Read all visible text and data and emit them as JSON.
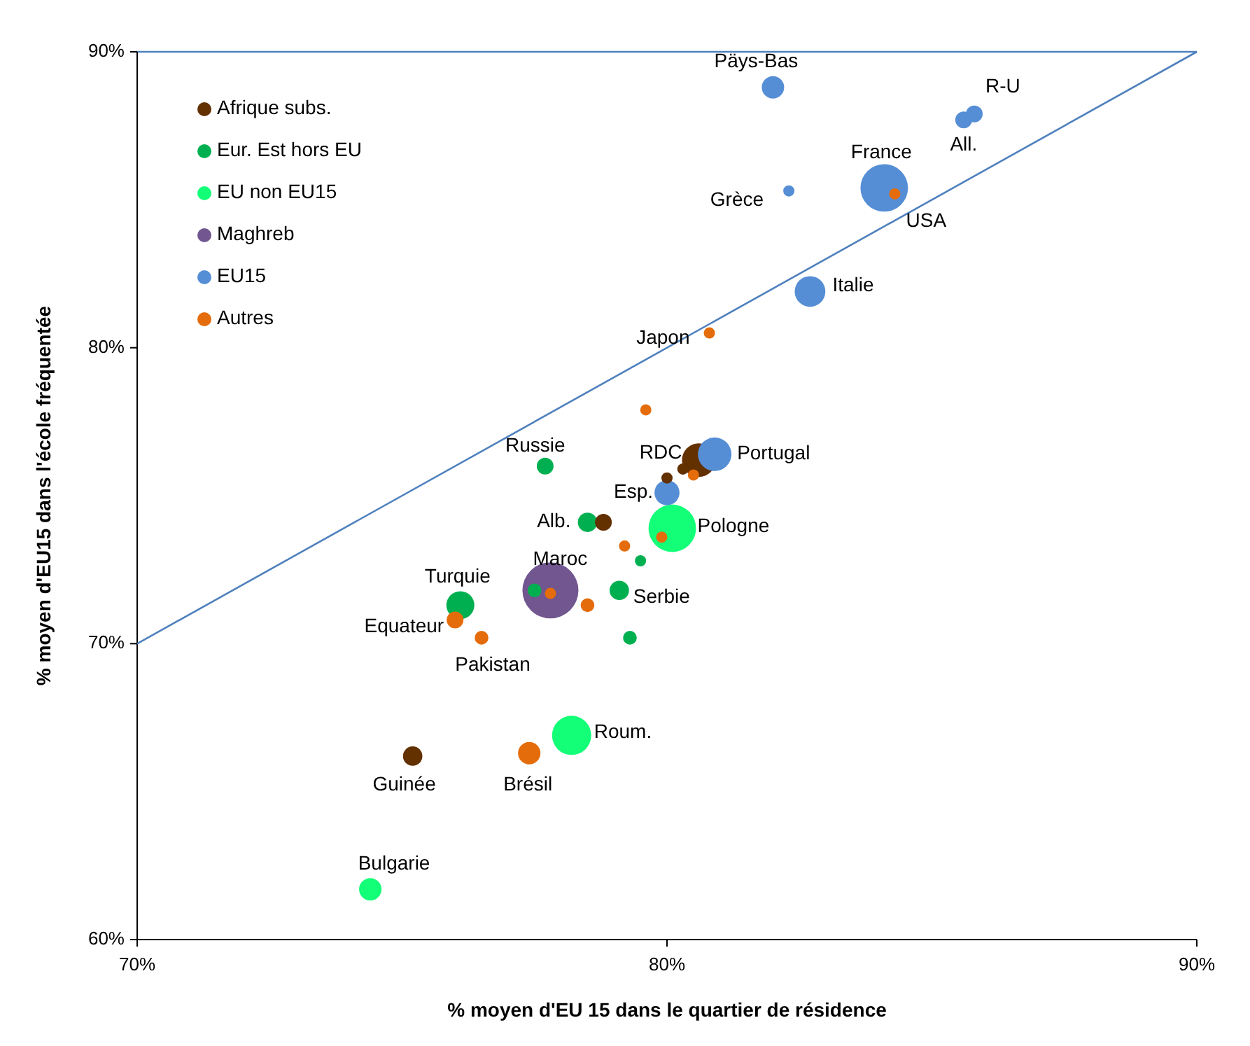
{
  "chart_data": {
    "type": "bubble",
    "xlabel": "% moyen d'EU 15 dans le quartier de résidence",
    "ylabel": "% moyen d'EU15 dans l'école fréquentée",
    "xlim": [
      70,
      90
    ],
    "ylim": [
      60,
      90
    ],
    "xticks": [
      {
        "value": 70,
        "label": "70%"
      },
      {
        "value": 80,
        "label": "80%"
      },
      {
        "value": 90,
        "label": "90%"
      }
    ],
    "yticks": [
      {
        "value": 60,
        "label": "60%"
      },
      {
        "value": 70,
        "label": "70%"
      },
      {
        "value": 80,
        "label": "80%"
      },
      {
        "value": 90,
        "label": "90%"
      }
    ],
    "grid": false,
    "legend": "top left",
    "ref_lines": [
      {
        "axis": "y",
        "value": 90,
        "color": "#4f81bd"
      }
    ],
    "series": [
      {
        "name": "Afrique subs.",
        "color": "#633000",
        "x": [
          80.6,
          80.3,
          80.0,
          78.8,
          75.2
        ],
        "values": [
          76.2,
          75.9,
          75.6,
          74.1,
          66.2
        ],
        "sizes": [
          0.36,
          0.04,
          0.04,
          0.09,
          0.12
        ]
      },
      {
        "name": "Eur. Est hors EU",
        "color": "#00b050",
        "x": [
          77.7,
          78.5,
          77.5,
          79.5,
          79.1,
          79.3,
          76.1
        ],
        "values": [
          76.0,
          74.1,
          71.8,
          72.8,
          71.8,
          70.2,
          71.3
        ],
        "sizes": [
          0.09,
          0.12,
          0.06,
          0.04,
          0.12,
          0.06,
          0.25
        ]
      },
      {
        "name": "EU non EU15",
        "color": "#14ff78",
        "x": [
          80.1,
          78.2,
          74.4
        ],
        "values": [
          73.9,
          66.9,
          61.7
        ],
        "sizes": [
          0.72,
          0.49,
          0.16
        ]
      },
      {
        "name": "Maghreb",
        "color": "#71568f",
        "x": [
          77.8
        ],
        "values": [
          71.8
        ],
        "sizes": [
          1
        ]
      },
      {
        "name": "EU15",
        "color": "#558ed5",
        "x": [
          82.0,
          85.8,
          85.6,
          82.3,
          84.1,
          82.7,
          80.9,
          80.0
        ],
        "values": [
          88.8,
          87.9,
          87.7,
          85.3,
          85.4,
          81.9,
          76.4,
          75.1
        ],
        "sizes": [
          0.16,
          0.09,
          0.09,
          0.04,
          0.72,
          0.3,
          0.36,
          0.2
        ]
      },
      {
        "name": "Autres",
        "color": "#e46c0a",
        "x": [
          84.3,
          80.8,
          79.6,
          80.5,
          79.9,
          79.2,
          77.8,
          78.5,
          76.0,
          76.5,
          77.4
        ],
        "values": [
          85.2,
          80.5,
          77.9,
          75.7,
          73.6,
          73.3,
          71.7,
          71.3,
          70.8,
          70.2,
          66.3
        ],
        "sizes": [
          0.04,
          0.04,
          0.04,
          0.04,
          0.04,
          0.04,
          0.04,
          0.06,
          0.09,
          0.06,
          0.16
        ]
      },
      {
        "type": "line",
        "color": "#4f81bd",
        "x": [
          70,
          90
        ],
        "values": [
          70,
          90
        ],
        "marker": "none"
      }
    ],
    "annotations": [
      {
        "text": "Päys-Bas",
        "x": 82.0,
        "y": 88.8
      },
      {
        "text": "R-U",
        "x": 85.8,
        "y": 87.9
      },
      {
        "text": "All.",
        "x": 85.6,
        "y": 87.7
      },
      {
        "text": "France",
        "x": 84.1,
        "y": 85.4
      },
      {
        "text": "Grèce",
        "x": 82.3,
        "y": 85.3
      },
      {
        "text": "USA",
        "x": 84.3,
        "y": 85.2
      },
      {
        "text": "Italie",
        "x": 82.7,
        "y": 81.9
      },
      {
        "text": "Japon",
        "x": 80.8,
        "y": 80.5
      },
      {
        "text": "Russie",
        "x": 77.7,
        "y": 76.0
      },
      {
        "text": "RDC",
        "x": 80.6,
        "y": 76.2
      },
      {
        "text": "Portugal",
        "x": 80.9,
        "y": 76.4
      },
      {
        "text": "Esp.",
        "x": 80.0,
        "y": 75.1
      },
      {
        "text": "Alb.",
        "x": 78.5,
        "y": 74.1
      },
      {
        "text": "Pologne",
        "x": 80.1,
        "y": 73.9
      },
      {
        "text": "Maroc",
        "x": 77.8,
        "y": 71.8
      },
      {
        "text": "Turquie",
        "x": 76.1,
        "y": 71.3
      },
      {
        "text": "Serbie",
        "x": 79.1,
        "y": 71.8
      },
      {
        "text": "Equateur",
        "x": 76.0,
        "y": 70.8
      },
      {
        "text": "Pakistan",
        "x": 76.5,
        "y": 70.2
      },
      {
        "text": "Roum.",
        "x": 78.2,
        "y": 66.9
      },
      {
        "text": "Guinée",
        "x": 75.2,
        "y": 66.2
      },
      {
        "text": "Brésil",
        "x": 77.4,
        "y": 66.3
      },
      {
        "text": "Bulgarie",
        "x": 74.4,
        "y": 61.7
      }
    ]
  }
}
